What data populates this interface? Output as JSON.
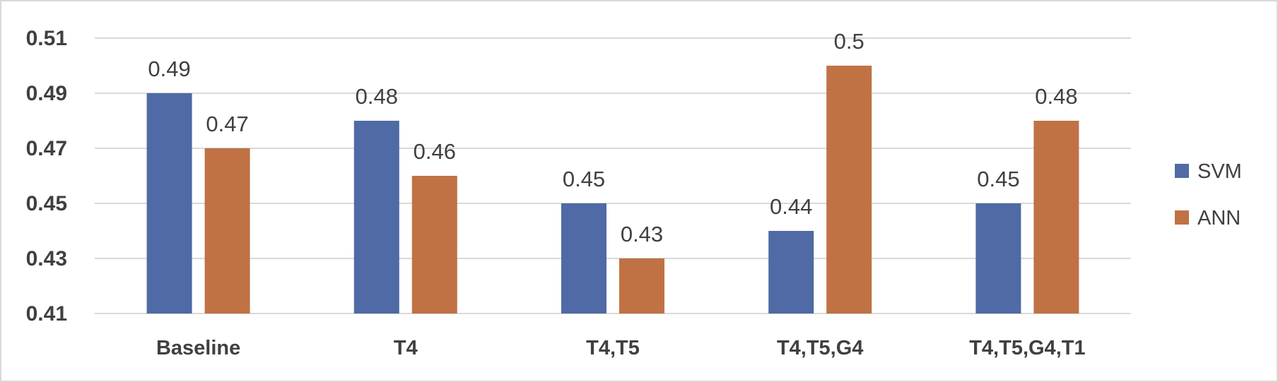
{
  "chart_data": {
    "type": "bar",
    "title": "",
    "xlabel": "",
    "ylabel": "",
    "categories": [
      "Baseline",
      "T4",
      "T4,T5",
      "T4,T5,G4",
      "T4,T5,G4,T1"
    ],
    "series": [
      {
        "name": "SVM",
        "values": [
          0.49,
          0.48,
          0.45,
          0.44,
          0.45
        ],
        "labels": [
          "0.49",
          "0.48",
          "0.45",
          "0.44",
          "0.45"
        ],
        "color": "#4f6aa5"
      },
      {
        "name": "ANN",
        "values": [
          0.47,
          0.46,
          0.43,
          0.5,
          0.48
        ],
        "labels": [
          "0.47",
          "0.46",
          "0.43",
          "0.5",
          "0.48"
        ],
        "color": "#c07244"
      }
    ],
    "ylim": [
      0.41,
      0.51
    ],
    "yticks": [
      0.41,
      0.43,
      0.45,
      0.47,
      0.49,
      0.51
    ],
    "ytick_labels": [
      "0.41",
      "0.43",
      "0.45",
      "0.47",
      "0.49",
      "0.51"
    ],
    "grid": true,
    "legend_position": "right"
  }
}
